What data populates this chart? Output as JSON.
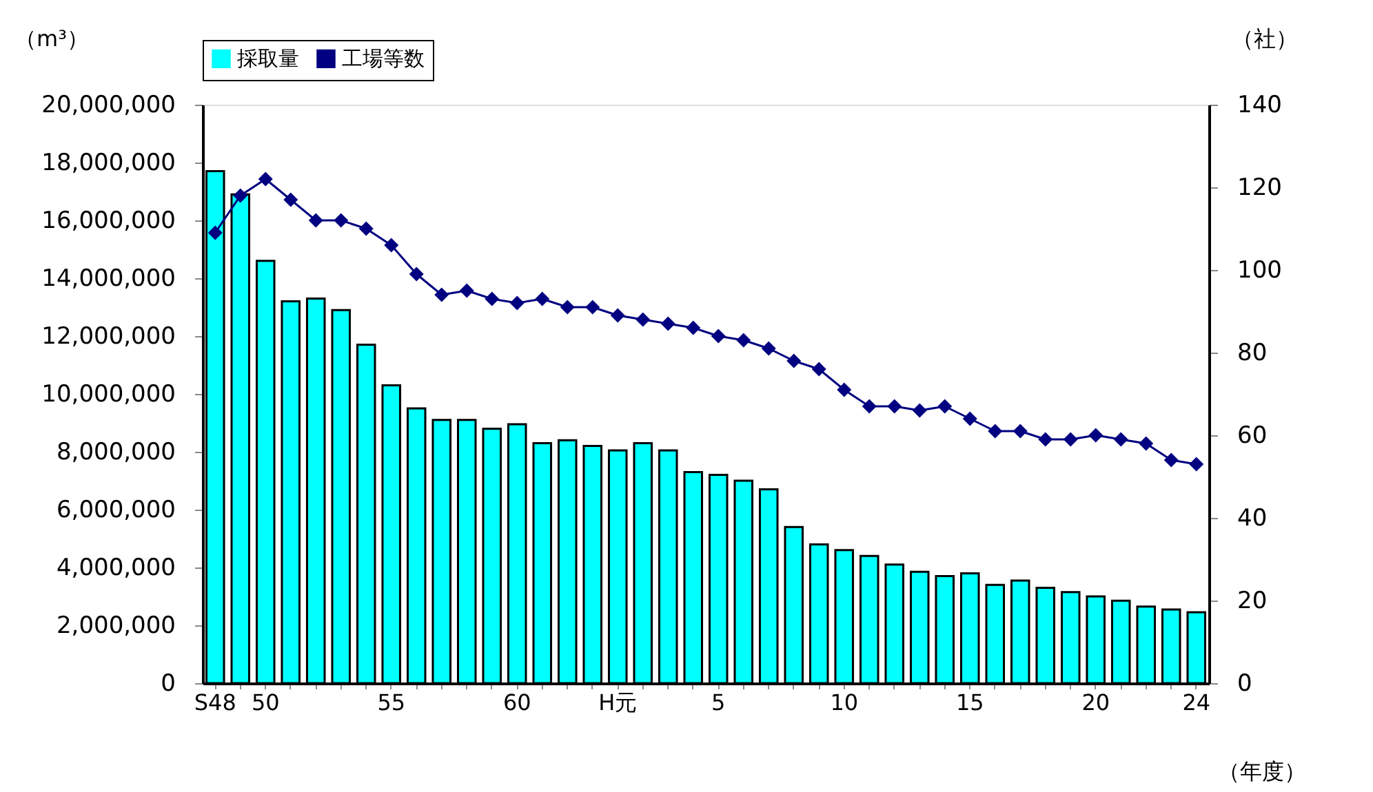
{
  "chart_data": {
    "type": "bar",
    "xlabel": "（年度）",
    "ylabel": "（m³）",
    "y2label": "（社）",
    "categories": [
      "S48",
      null,
      "50",
      null,
      null,
      null,
      null,
      "55",
      null,
      null,
      null,
      null,
      "60",
      null,
      null,
      null,
      "H元",
      null,
      null,
      null,
      "5",
      null,
      null,
      null,
      null,
      "10",
      null,
      null,
      null,
      null,
      "15",
      null,
      null,
      null,
      null,
      "20",
      null,
      null,
      null,
      "24"
    ],
    "series": [
      {
        "name": "採取量",
        "color": "#00ffff",
        "values": [
          17700000,
          16900000,
          14600000,
          13200000,
          13300000,
          12900000,
          11700000,
          10300000,
          9500000,
          9100000,
          9100000,
          8800000,
          8950000,
          8300000,
          8400000,
          8200000,
          8050000,
          8300000,
          8050000,
          7300000,
          7200000,
          7000000,
          6700000,
          5400000,
          4800000,
          4600000,
          4400000,
          4100000,
          3850000,
          3700000,
          3800000,
          3400000,
          3550000,
          3300000,
          3150000,
          3000000,
          2850000,
          2650000,
          2550000,
          2450000
        ]
      },
      {
        "name": "工場等数",
        "type": "line",
        "axis": "y2",
        "color": "#000080",
        "marker": "diamond",
        "values": [
          109,
          118,
          122,
          117,
          112,
          112,
          110,
          106,
          99,
          94,
          95,
          93,
          92,
          93,
          91,
          91,
          89,
          88,
          87,
          86,
          84,
          83,
          81,
          78,
          76,
          71,
          67,
          67,
          66,
          67,
          64,
          61,
          61,
          59,
          59,
          60,
          59,
          58,
          54,
          53
        ]
      }
    ],
    "ylim": [
      0,
      20000000
    ],
    "yticks": [
      0,
      {
        "value": 2000000,
        "label": "2,000,000"
      },
      {
        "value": 4000000,
        "label": "4,000,000"
      },
      {
        "value": 6000000,
        "label": "6,000,000"
      },
      {
        "value": 8000000,
        "label": "8,000,000"
      },
      {
        "value": 10000000,
        "label": "10,000,000"
      },
      {
        "value": 12000000,
        "label": "12,000,000"
      },
      {
        "value": 14000000,
        "label": "14,000,000"
      },
      {
        "value": 16000000,
        "label": "16,000,000"
      },
      {
        "value": 18000000,
        "label": "18,000,000"
      },
      {
        "value": 20000000,
        "label": "20,000,000"
      }
    ],
    "y2lim": [
      0,
      140
    ],
    "y2ticks": [
      0,
      20,
      40,
      60,
      80,
      100,
      120,
      140
    ],
    "legend": "top",
    "grid": false
  }
}
